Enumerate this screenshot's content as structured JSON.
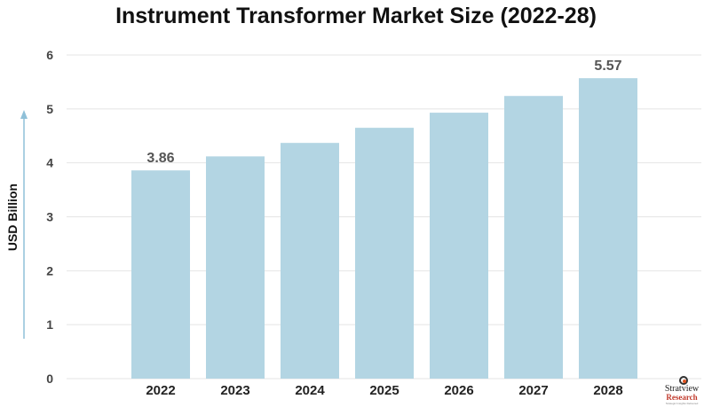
{
  "chart_data": {
    "type": "bar",
    "title": "Instrument Transformer Market Size (2022-28)",
    "xlabel": "",
    "ylabel": "USD Billion",
    "categories": [
      "2022",
      "2023",
      "2024",
      "2025",
      "2026",
      "2027",
      "2028"
    ],
    "values": [
      3.86,
      4.12,
      4.37,
      4.65,
      4.93,
      5.24,
      5.57
    ],
    "data_labels": [
      "3.86",
      "",
      "",
      "",
      "",
      "",
      "5.57"
    ],
    "ylim": [
      0,
      6
    ],
    "yticks": [
      0,
      1,
      2,
      3,
      4,
      5,
      6
    ],
    "grid": true,
    "bar_color": "#b3d5e3",
    "axis_arrow_color": "#8fc0d8"
  },
  "branding": {
    "name": "Stratview",
    "sub": "Research",
    "tagline": "Strategic Insights Delivered"
  }
}
